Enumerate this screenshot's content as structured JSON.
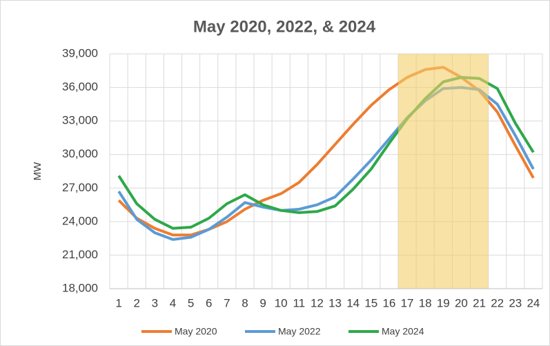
{
  "chart_data": {
    "type": "line",
    "title": "May 2020, 2022, & 2024",
    "ylabel": "MW",
    "categories": [
      "1",
      "2",
      "3",
      "4",
      "5",
      "6",
      "7",
      "8",
      "9",
      "10",
      "11",
      "12",
      "13",
      "14",
      "15",
      "16",
      "17",
      "18",
      "19",
      "20",
      "21",
      "22",
      "23",
      "24"
    ],
    "series": [
      {
        "name": "May 2020",
        "color": "#ed7d31",
        "values": [
          25900,
          24300,
          23400,
          22800,
          22800,
          23300,
          24000,
          25100,
          25900,
          26500,
          27500,
          29100,
          30900,
          32700,
          34400,
          35800,
          36900,
          37600,
          37800,
          36900,
          35700,
          33800,
          30800,
          27900
        ]
      },
      {
        "name": "May 2022",
        "color": "#5b9bd5",
        "values": [
          26700,
          24200,
          23000,
          22400,
          22600,
          23300,
          24400,
          25700,
          25300,
          25000,
          25100,
          25500,
          26200,
          27800,
          29500,
          31400,
          33300,
          34800,
          35900,
          36000,
          35800,
          34500,
          31700,
          28700
        ]
      },
      {
        "name": "May 2024",
        "color": "#2ea84a",
        "values": [
          28100,
          25600,
          24200,
          23400,
          23500,
          24300,
          25600,
          26400,
          25500,
          25000,
          24800,
          24900,
          25400,
          26900,
          28700,
          31000,
          33200,
          35000,
          36500,
          36900,
          36800,
          35900,
          32800,
          30200
        ]
      }
    ],
    "ylim": [
      18000,
      39000
    ],
    "yticks": [
      {
        "value": 18000,
        "label": "18,000"
      },
      {
        "value": 21000,
        "label": "21,000"
      },
      {
        "value": 24000,
        "label": "24,000"
      },
      {
        "value": 27000,
        "label": "27,000"
      },
      {
        "value": 30000,
        "label": "30,000"
      },
      {
        "value": 33000,
        "label": "33,000"
      },
      {
        "value": 36000,
        "label": "36,000"
      },
      {
        "value": 39000,
        "label": "39,000"
      }
    ],
    "grid": true,
    "highlight": {
      "start": "17",
      "end": "21",
      "color": "#f3cf6b"
    },
    "legend": "bottom"
  }
}
